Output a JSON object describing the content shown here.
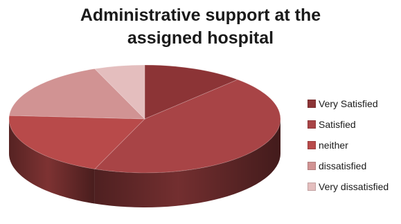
{
  "chart_data": {
    "type": "pie",
    "title": "Administrative support at the\nassigned hospital",
    "categories": [
      "Very Satisfied",
      "Satisfied",
      "neither",
      "dissatisfied",
      "Very dissatisfied"
    ],
    "values": [
      12,
      44,
      20,
      18,
      6
    ],
    "colors": [
      "#8c3436",
      "#a84446",
      "#b84a4a",
      "#d19393",
      "#e4bebe"
    ],
    "legend_position": "right"
  }
}
